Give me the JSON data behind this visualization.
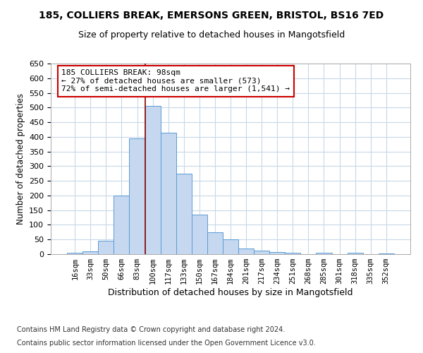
{
  "title_line1": "185, COLLIERS BREAK, EMERSONS GREEN, BRISTOL, BS16 7ED",
  "title_line2": "Size of property relative to detached houses in Mangotsfield",
  "xlabel": "Distribution of detached houses by size in Mangotsfield",
  "ylabel": "Number of detached properties",
  "categories": [
    "16sqm",
    "33sqm",
    "50sqm",
    "66sqm",
    "83sqm",
    "100sqm",
    "117sqm",
    "133sqm",
    "150sqm",
    "167sqm",
    "184sqm",
    "201sqm",
    "217sqm",
    "234sqm",
    "251sqm",
    "268sqm",
    "285sqm",
    "301sqm",
    "318sqm",
    "335sqm",
    "352sqm"
  ],
  "values": [
    5,
    10,
    45,
    200,
    395,
    505,
    415,
    275,
    135,
    75,
    50,
    20,
    12,
    8,
    5,
    0,
    5,
    0,
    5,
    0,
    3
  ],
  "bar_color": "#c5d8ef",
  "bar_edge_color": "#5b9bd5",
  "vline_color": "#8b0000",
  "annotation_text": "185 COLLIERS BREAK: 98sqm\n← 27% of detached houses are smaller (573)\n72% of semi-detached houses are larger (1,541) →",
  "annotation_box_color": "#ffffff",
  "annotation_box_edge_color": "#cc0000",
  "ylim": [
    0,
    650
  ],
  "yticks": [
    0,
    50,
    100,
    150,
    200,
    250,
    300,
    350,
    400,
    450,
    500,
    550,
    600,
    650
  ],
  "footer_line1": "Contains HM Land Registry data © Crown copyright and database right 2024.",
  "footer_line2": "Contains public sector information licensed under the Open Government Licence v3.0.",
  "bg_color": "#ffffff",
  "grid_color": "#c8d8e8"
}
